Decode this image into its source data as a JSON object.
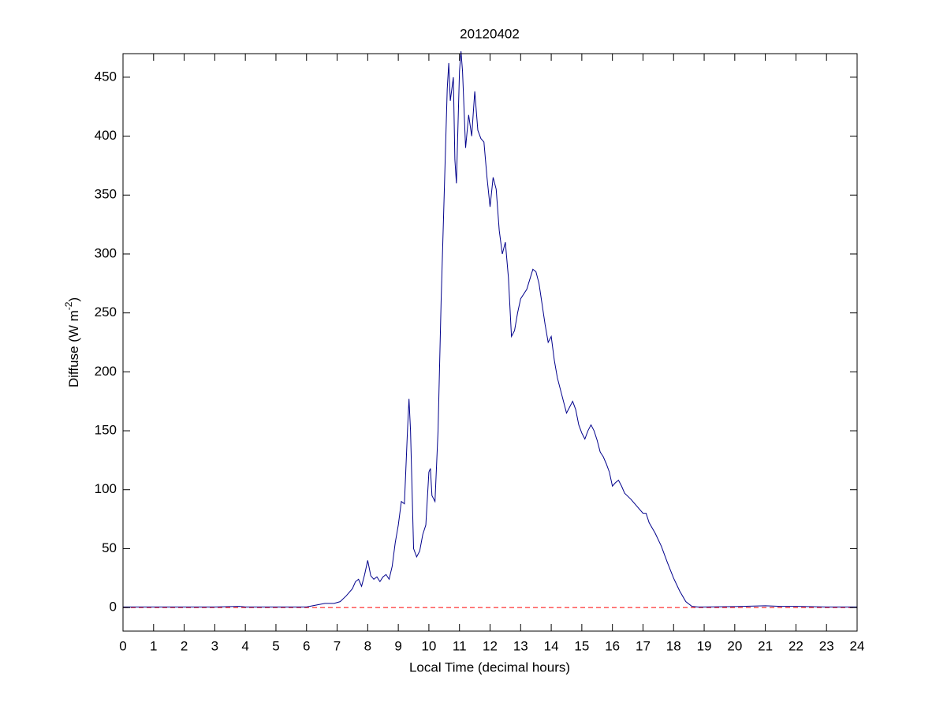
{
  "chart_data": {
    "type": "line",
    "title": "20120402",
    "xlabel": "Local Time (decimal hours)",
    "ylabel": {
      "text": "Diffuse (W m",
      "sup": "-2",
      "end": ")"
    },
    "xlim": [
      0,
      24
    ],
    "ylim": [
      -20,
      470
    ],
    "xticks": [
      0,
      1,
      2,
      3,
      4,
      5,
      6,
      7,
      8,
      9,
      10,
      11,
      12,
      13,
      14,
      15,
      16,
      17,
      18,
      19,
      20,
      21,
      22,
      23,
      24
    ],
    "yticks": [
      0,
      50,
      100,
      150,
      200,
      250,
      300,
      350,
      400,
      450
    ],
    "grid": false,
    "hline": {
      "value": 0,
      "color": "#ff0000",
      "style": "dashed"
    },
    "series": [
      {
        "color": "#00008b",
        "x": [
          0,
          1,
          2,
          3,
          3.8,
          4,
          5,
          6,
          6.3,
          6.6,
          6.9,
          7.1,
          7.3,
          7.5,
          7.6,
          7.7,
          7.8,
          7.9,
          8.0,
          8.1,
          8.2,
          8.3,
          8.4,
          8.5,
          8.6,
          8.7,
          8.8,
          8.9,
          9.0,
          9.1,
          9.2,
          9.3,
          9.35,
          9.4,
          9.5,
          9.6,
          9.7,
          9.8,
          9.9,
          10.0,
          10.05,
          10.1,
          10.2,
          10.3,
          10.4,
          10.5,
          10.6,
          10.65,
          10.7,
          10.8,
          10.85,
          10.9,
          11.0,
          11.05,
          11.1,
          11.2,
          11.3,
          11.4,
          11.5,
          11.6,
          11.7,
          11.8,
          11.9,
          12.0,
          12.1,
          12.2,
          12.3,
          12.4,
          12.5,
          12.6,
          12.7,
          12.8,
          12.9,
          13.0,
          13.2,
          13.4,
          13.5,
          13.6,
          13.8,
          13.9,
          14.0,
          14.1,
          14.2,
          14.4,
          14.5,
          14.6,
          14.7,
          14.8,
          14.9,
          15.0,
          15.1,
          15.2,
          15.3,
          15.4,
          15.5,
          15.6,
          15.7,
          15.8,
          15.9,
          16.0,
          16.1,
          16.2,
          16.3,
          16.4,
          16.6,
          16.8,
          17.0,
          17.1,
          17.2,
          17.4,
          17.6,
          17.8,
          18.0,
          18.2,
          18.4,
          18.6,
          18.8,
          19,
          20,
          21,
          21.5,
          22,
          23,
          24
        ],
        "values": [
          0.5,
          0.5,
          0.5,
          0.5,
          1,
          0.5,
          0.5,
          0.5,
          2,
          3.5,
          3.5,
          5,
          10,
          16,
          22,
          24,
          18,
          28,
          40,
          27,
          24,
          26,
          22,
          26,
          28,
          24,
          35,
          55,
          70,
          90,
          88,
          150,
          177,
          150,
          50,
          43,
          48,
          62,
          70,
          115,
          118,
          95,
          90,
          150,
          260,
          350,
          440,
          462,
          430,
          450,
          380,
          360,
          455,
          472,
          455,
          390,
          418,
          400,
          438,
          405,
          398,
          395,
          365,
          340,
          365,
          355,
          320,
          300,
          310,
          280,
          230,
          235,
          250,
          262,
          270,
          287,
          285,
          275,
          240,
          225,
          230,
          210,
          195,
          175,
          165,
          170,
          175,
          168,
          155,
          148,
          143,
          150,
          155,
          150,
          142,
          132,
          128,
          122,
          115,
          103,
          106,
          108,
          103,
          97,
          92,
          86,
          80,
          80,
          72,
          63,
          52,
          38,
          25,
          14,
          5,
          1,
          0.5,
          0.5,
          0.8,
          1.5,
          1,
          1,
          0.5,
          0.5
        ]
      }
    ]
  }
}
